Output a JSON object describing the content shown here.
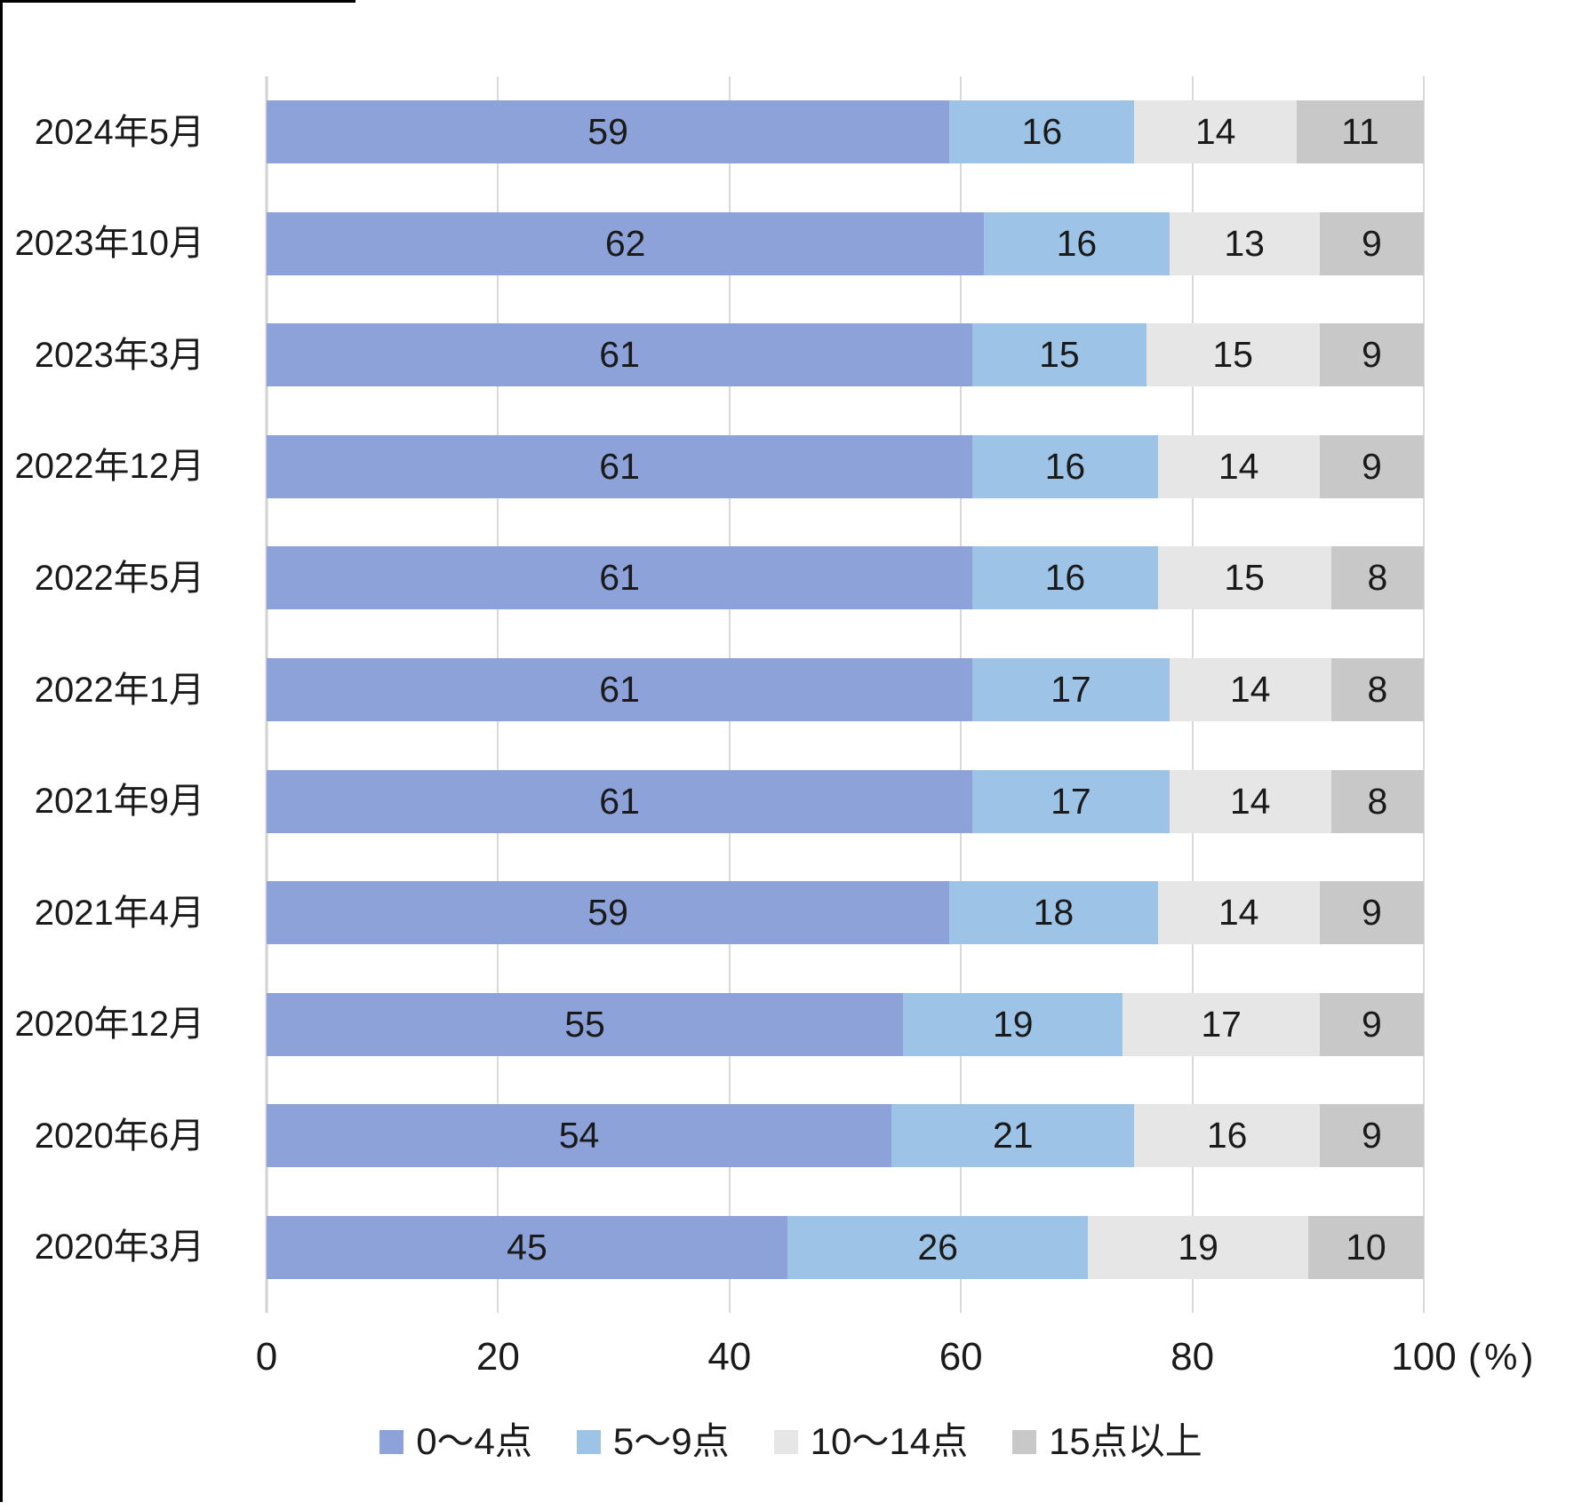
{
  "chart_data": {
    "type": "bar",
    "orientation": "horizontal",
    "stacked": true,
    "title": "",
    "xlabel": "",
    "ylabel": "",
    "unit_label": "(%)",
    "x_axis": {
      "range": [
        0,
        100
      ],
      "ticks": [
        0,
        20,
        40,
        60,
        80,
        100
      ],
      "grid": true
    },
    "legend_position": "bottom",
    "categories": [
      "2024年5月",
      "2023年10月",
      "2023年3月",
      "2022年12月",
      "2022年5月",
      "2022年1月",
      "2021年9月",
      "2021年4月",
      "2020年12月",
      "2020年6月",
      "2020年3月"
    ],
    "series": [
      {
        "name": "0～4点",
        "color": "#8ca2d8",
        "values": [
          59,
          62,
          61,
          61,
          61,
          61,
          61,
          59,
          55,
          54,
          45
        ]
      },
      {
        "name": "5～9点",
        "color": "#9dc3e6",
        "values": [
          16,
          16,
          15,
          16,
          16,
          17,
          17,
          18,
          19,
          21,
          26
        ]
      },
      {
        "name": "10～14点",
        "color": "#e6e6e6",
        "values": [
          14,
          13,
          15,
          14,
          15,
          14,
          14,
          14,
          17,
          16,
          19
        ]
      },
      {
        "name": "15点以上",
        "color": "#c8c8c8",
        "values": [
          11,
          9,
          9,
          9,
          8,
          8,
          8,
          9,
          9,
          9,
          10
        ]
      }
    ],
    "colors": {
      "gridline": "#d9d9d9",
      "axis_line": "#d2d2d2",
      "label_text": "#1a1a1a",
      "background": "#ffffff"
    }
  }
}
